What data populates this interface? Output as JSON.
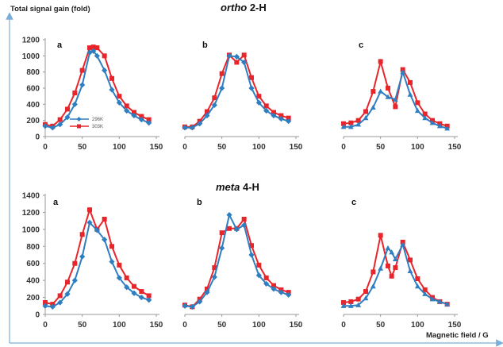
{
  "figure": {
    "ylabel": "Total signal gain (fold)",
    "xlabel": "Magnetic field / G",
    "row_titles": [
      {
        "italic": "ortho",
        "rest": " 2-H"
      },
      {
        "italic": "meta",
        "rest": " 4-H"
      }
    ],
    "legend": [
      {
        "label": "296K",
        "color": "#2f7ec1",
        "marker": "diamond"
      },
      {
        "label": "303K",
        "color": "#e8252b",
        "marker": "square"
      }
    ],
    "colors": {
      "blue": "#2f7ec1",
      "red": "#e8252b",
      "axis_line": "#7aaed8",
      "axis": "#9a9a9a"
    }
  },
  "chart_data": [
    {
      "type": "line",
      "panel": "a",
      "row": "ortho 2-H",
      "ylim": [
        0,
        1200
      ],
      "yticks": [
        0,
        200,
        400,
        600,
        800,
        1000,
        1200
      ],
      "xlim": [
        0,
        150
      ],
      "xticks": [
        0,
        50,
        100,
        150
      ],
      "x": [
        0,
        10,
        20,
        30,
        40,
        50,
        60,
        65,
        70,
        80,
        90,
        100,
        110,
        120,
        130,
        140
      ],
      "series": [
        {
          "name": "296K",
          "values": [
            130,
            110,
            150,
            240,
            400,
            640,
            1040,
            1060,
            1000,
            820,
            580,
            420,
            320,
            260,
            210,
            170
          ]
        },
        {
          "name": "303K",
          "values": [
            150,
            130,
            210,
            340,
            540,
            820,
            1100,
            1110,
            1100,
            1000,
            720,
            500,
            380,
            300,
            250,
            210
          ]
        }
      ]
    },
    {
      "type": "line",
      "panel": "b",
      "row": "ortho 2-H",
      "ylim": [
        0,
        1200
      ],
      "xlim": [
        0,
        150
      ],
      "xticks": [
        0,
        50,
        100,
        150
      ],
      "x": [
        0,
        10,
        20,
        30,
        40,
        50,
        60,
        70,
        80,
        90,
        100,
        110,
        120,
        130,
        140
      ],
      "series": [
        {
          "name": "296K",
          "values": [
            110,
            110,
            160,
            260,
            390,
            600,
            1000,
            990,
            920,
            600,
            420,
            320,
            260,
            220,
            190
          ]
        },
        {
          "name": "303K",
          "values": [
            120,
            120,
            190,
            310,
            480,
            780,
            1010,
            920,
            1010,
            730,
            500,
            380,
            300,
            260,
            230
          ]
        }
      ]
    },
    {
      "type": "line",
      "panel": "c",
      "row": "ortho 2-H",
      "ylim": [
        0,
        1200
      ],
      "xlim": [
        0,
        150
      ],
      "xticks": [
        0,
        50,
        100,
        150
      ],
      "x": [
        0,
        10,
        20,
        30,
        40,
        50,
        60,
        70,
        80,
        90,
        100,
        110,
        120,
        130,
        140
      ],
      "series": [
        {
          "name": "296K",
          "values": [
            120,
            120,
            150,
            230,
            360,
            560,
            490,
            460,
            800,
            520,
            320,
            230,
            170,
            130,
            100
          ]
        },
        {
          "name": "303K",
          "values": [
            160,
            170,
            200,
            310,
            560,
            930,
            600,
            370,
            830,
            670,
            420,
            280,
            200,
            160,
            130
          ]
        }
      ]
    },
    {
      "type": "line",
      "panel": "a",
      "row": "meta 4-H",
      "ylim": [
        0,
        1400
      ],
      "yticks": [
        0,
        200,
        400,
        600,
        800,
        1000,
        1200,
        1400
      ],
      "xlim": [
        0,
        150
      ],
      "xticks": [
        0,
        50,
        100,
        150
      ],
      "x": [
        0,
        10,
        20,
        30,
        40,
        50,
        60,
        70,
        80,
        90,
        100,
        110,
        120,
        130,
        140
      ],
      "series": [
        {
          "name": "296K",
          "values": [
            100,
            90,
            140,
            240,
            400,
            680,
            1080,
            990,
            880,
            620,
            430,
            320,
            250,
            200,
            170
          ]
        },
        {
          "name": "303K",
          "values": [
            140,
            120,
            220,
            380,
            600,
            940,
            1230,
            1000,
            1120,
            800,
            580,
            430,
            330,
            270,
            220
          ]
        }
      ]
    },
    {
      "type": "line",
      "panel": "b",
      "row": "meta 4-H",
      "ylim": [
        0,
        1400
      ],
      "xlim": [
        0,
        150
      ],
      "xticks": [
        0,
        50,
        100,
        150
      ],
      "x": [
        0,
        10,
        20,
        30,
        40,
        50,
        60,
        70,
        80,
        90,
        100,
        110,
        120,
        130,
        140
      ],
      "series": [
        {
          "name": "296K",
          "values": [
            100,
            90,
            150,
            260,
            440,
            780,
            1170,
            1000,
            1050,
            700,
            460,
            360,
            300,
            260,
            230
          ]
        },
        {
          "name": "303K",
          "values": [
            110,
            90,
            180,
            300,
            550,
            960,
            1010,
            1010,
            1120,
            810,
            580,
            430,
            340,
            290,
            260
          ]
        }
      ]
    },
    {
      "type": "line",
      "panel": "c",
      "row": "meta 4-H",
      "ylim": [
        0,
        1400
      ],
      "xlim": [
        0,
        150
      ],
      "xticks": [
        0,
        50,
        100,
        150
      ],
      "x": [
        0,
        10,
        20,
        30,
        40,
        50,
        60,
        65,
        70,
        80,
        90,
        100,
        110,
        120,
        130,
        140
      ],
      "series": [
        {
          "name": "296K",
          "values": [
            100,
            100,
            110,
            190,
            330,
            540,
            780,
            730,
            650,
            820,
            510,
            330,
            240,
            180,
            150,
            120
          ]
        },
        {
          "name": "303K",
          "values": [
            140,
            150,
            180,
            270,
            500,
            930,
            570,
            450,
            550,
            850,
            640,
            420,
            290,
            200,
            150,
            120
          ]
        }
      ]
    }
  ]
}
